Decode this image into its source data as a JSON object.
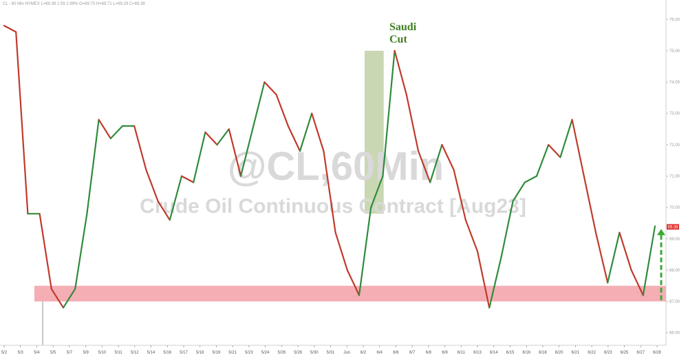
{
  "header": {
    "text": "CL - 60 Min   NYMEX   L=69.38   1:59   2.99%   O=69.70   H=69.71   L=69.29   C=69.38"
  },
  "watermark": {
    "ticker": "@CL,60Min",
    "subtitle": "Crude Oil Continuous Contract [Aug23]"
  },
  "annotation": {
    "line1": "Saudi",
    "line2": "Cut"
  },
  "price_tag": {
    "value": "69.38",
    "color": "#e0302e"
  },
  "colors": {
    "up": "#2e8b3a",
    "down": "#c0392b",
    "support_zone": "#f4aeb4",
    "highlight": "#b7c99a",
    "arrow": "#39a935"
  },
  "chart_data": {
    "type": "line",
    "title": "",
    "xlabel": "",
    "ylabel": "",
    "x_tick_labels": [
      "5/2",
      "5/3",
      "5/4",
      "5/5",
      "5/7",
      "5/9",
      "5/10",
      "5/11",
      "5/12",
      "5/14",
      "5/16",
      "5/17",
      "5/18",
      "5/19",
      "5/21",
      "5/23",
      "5/24",
      "5/26",
      "5/28",
      "5/30",
      "5/31",
      "Jun",
      "6/2",
      "6/4",
      "6/6",
      "6/7",
      "6/8",
      "6/9",
      "6/11",
      "6/13",
      "6/14",
      "6/15",
      "6/16",
      "6/18",
      "6/20",
      "6/21",
      "6/22",
      "6/23",
      "6/25",
      "6/27",
      "6/28"
    ],
    "y_ticks": [
      66,
      67,
      68,
      69,
      70,
      71,
      72,
      73,
      74,
      75,
      76
    ],
    "ylim": [
      65.6,
      76.4
    ],
    "series": [
      {
        "values": [
          [
            0,
            75.8
          ],
          [
            1,
            75.6
          ],
          [
            2,
            69.8
          ],
          [
            3,
            69.8
          ],
          [
            4,
            67.4
          ],
          [
            5,
            66.8
          ],
          [
            6,
            67.4
          ],
          [
            7,
            69.8
          ],
          [
            8,
            72.8
          ],
          [
            9,
            72.2
          ],
          [
            10,
            72.6
          ],
          [
            11,
            72.6
          ],
          [
            12,
            71.2
          ],
          [
            13,
            70.2
          ],
          [
            14,
            69.6
          ],
          [
            15,
            71.0
          ],
          [
            16,
            70.8
          ],
          [
            17,
            72.4
          ],
          [
            18,
            72.0
          ],
          [
            19,
            72.5
          ],
          [
            20,
            71.0
          ],
          [
            21,
            72.5
          ],
          [
            22,
            74.0
          ],
          [
            23,
            73.6
          ],
          [
            24,
            72.6
          ],
          [
            25,
            71.8
          ],
          [
            26,
            73.0
          ],
          [
            27,
            71.8
          ],
          [
            28,
            69.2
          ],
          [
            29,
            68.0
          ],
          [
            30,
            67.2
          ],
          [
            31,
            70.0
          ],
          [
            32,
            71.0
          ],
          [
            33,
            75.0
          ],
          [
            34,
            73.6
          ],
          [
            35,
            71.8
          ],
          [
            36,
            70.8
          ],
          [
            37,
            72.0
          ],
          [
            38,
            71.2
          ],
          [
            39,
            69.6
          ],
          [
            40,
            68.6
          ],
          [
            41,
            66.8
          ],
          [
            42,
            68.4
          ],
          [
            43,
            70.2
          ],
          [
            44,
            70.8
          ],
          [
            45,
            71.0
          ],
          [
            46,
            72.0
          ],
          [
            47,
            71.6
          ],
          [
            48,
            72.8
          ],
          [
            49,
            71.0
          ],
          [
            50,
            69.2
          ],
          [
            51,
            67.6
          ],
          [
            52,
            69.2
          ],
          [
            53,
            68.0
          ],
          [
            54,
            67.2
          ],
          [
            55,
            69.4
          ]
        ]
      }
    ],
    "support_zone": {
      "from": 67.0,
      "to": 67.5
    },
    "highlight_range": {
      "from_tick": "6/2",
      "to_tick": "6/4",
      "low": 69.8,
      "high": 75.0
    },
    "last_price": 69.38,
    "grid": false
  }
}
